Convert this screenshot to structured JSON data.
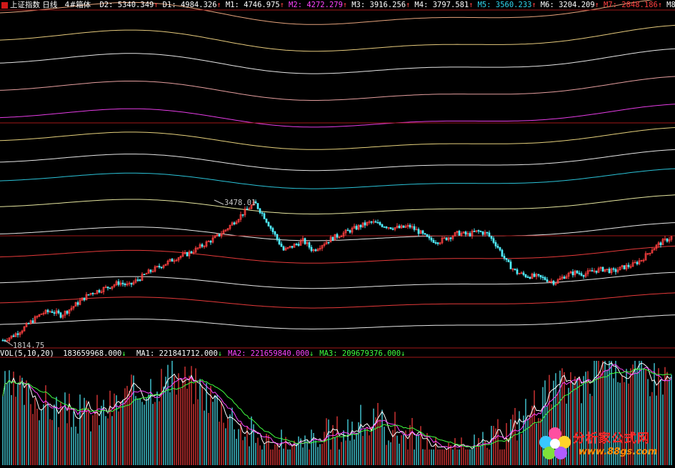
{
  "header": {
    "icon_name": "menu-square-icon",
    "title": "上证指数 日线",
    "indicator": "4#箱体",
    "items": [
      {
        "label": "D2",
        "value": "5340.349",
        "arrow": "↑",
        "color": "#ffffff"
      },
      {
        "label": "D1",
        "value": "4984.326",
        "arrow": "↑",
        "color": "#ffffff"
      },
      {
        "label": "M1",
        "value": "4746.975",
        "arrow": "↑",
        "color": "#ffffff"
      },
      {
        "label": "M2",
        "value": "4272.279",
        "arrow": "↑",
        "color": "#ff44ff"
      },
      {
        "label": "M3",
        "value": "3916.256",
        "arrow": "↑",
        "color": "#ffffff"
      },
      {
        "label": "M4",
        "value": "3797.581",
        "arrow": "↑",
        "color": "#ffffff"
      },
      {
        "label": "M5",
        "value": "3560.233",
        "arrow": "↑",
        "color": "#30d8f0"
      },
      {
        "label": "M6",
        "value": "3204.209",
        "arrow": "↑",
        "color": "#ffffff"
      },
      {
        "label": "M7",
        "value": "2848.186",
        "arrow": "↑",
        "color": "#ff4040"
      },
      {
        "label": "M8",
        "value": "",
        "arrow": "",
        "color": "#ffffff"
      }
    ]
  },
  "volume_header": {
    "label": "VOL(5,10,20)",
    "value": "183659968.000",
    "arrow": "↓",
    "items": [
      {
        "label": "MA1",
        "value": "221841712.000",
        "arrow": "↓",
        "color": "#ffffff"
      },
      {
        "label": "MA2",
        "value": "221659840.000",
        "arrow": "↓",
        "color": "#ff44ff"
      },
      {
        "label": "MA3",
        "value": "209679376.000",
        "arrow": "↓",
        "color": "#40ff40"
      }
    ]
  },
  "annotations": {
    "high": "3478.01",
    "low": "1814.75"
  },
  "logo": {
    "title": "分析家公式网",
    "url": "www.88gs.com",
    "icon_name": "flower-logo-icon"
  },
  "colors": {
    "background": "#000000",
    "up_candle": "#ff4040",
    "down_candle": "#50f0ff",
    "frame_red": "#a01818"
  },
  "chart_data": [
    {
      "type": "candlestick",
      "title": "上证指数 日线",
      "high": 3478.01,
      "low": 1814.75,
      "close_path": [
        1830,
        1880,
        1960,
        2060,
        2150,
        2180,
        2130,
        2210,
        2300,
        2390,
        2430,
        2470,
        2520,
        2480,
        2560,
        2640,
        2700,
        2760,
        2820,
        2860,
        2920,
        2990,
        3060,
        3150,
        3260,
        3370,
        3470,
        3300,
        3100,
        2900,
        2960,
        3020,
        2900,
        2980,
        3050,
        3100,
        3150,
        3200,
        3240,
        3210,
        3180,
        3170,
        3190,
        3120,
        3030,
        3010,
        3060,
        3110,
        3090,
        3130,
        3100,
        2960,
        2760,
        2640,
        2600,
        2590,
        2560,
        2520,
        2600,
        2640,
        2620,
        2660,
        2680,
        2650,
        2700,
        2730,
        2800,
        2920,
        3000,
        3060
      ],
      "box_lines": [
        {
          "name": "D2",
          "value": 5340.349,
          "color": "#ffb58a"
        },
        {
          "name": "D1",
          "value": 4984.326,
          "color": "#ffe08a"
        },
        {
          "name": "M1",
          "value": 4746.975,
          "color": "#ffffff"
        },
        {
          "name": "M2",
          "value": 4272.279,
          "color": "#ff44ff"
        },
        {
          "name": "M3",
          "value": 3916.256,
          "color": "#ffe88a"
        },
        {
          "name": "M4",
          "value": 3797.581,
          "color": "#ffffff"
        },
        {
          "name": "M5",
          "value": 3560.233,
          "color": "#30d8f0"
        },
        {
          "name": "M6",
          "value": 3204.209,
          "color": "#ffffff"
        },
        {
          "name": "M7",
          "value": 2848.186,
          "color": "#ff4040"
        }
      ]
    },
    {
      "type": "bar",
      "title": "VOL(5,10,20)",
      "series": [
        {
          "name": "MA1",
          "value": 221841712.0
        },
        {
          "name": "MA2",
          "value": 221659840.0
        },
        {
          "name": "MA3",
          "value": 209679376.0
        }
      ],
      "latest": 183659968.0
    }
  ]
}
